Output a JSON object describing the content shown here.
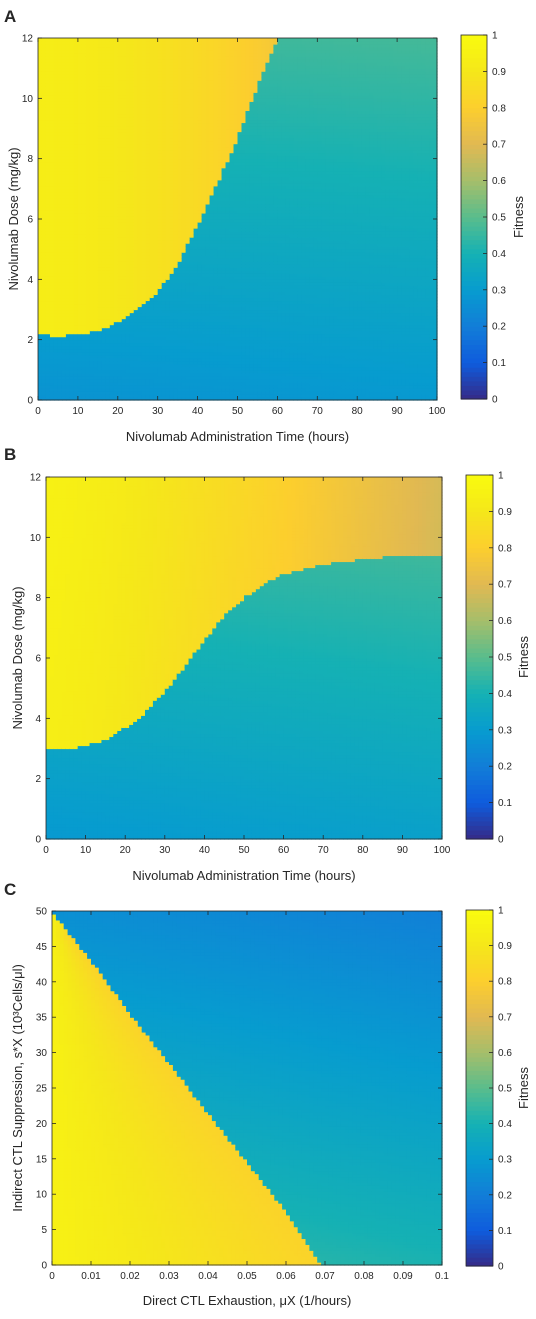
{
  "colors": {
    "yellow": "#f9e02a",
    "orange": "#f8bb3a",
    "teal": "#35b7b3",
    "blue": "#1a74e0",
    "navy": "#3b3594",
    "axis": "#262626"
  },
  "chart_data": [
    {
      "type": "heatmap",
      "panel_label": "A",
      "xlabel": "Nivolumab Administration Time (hours)",
      "ylabel": "Nivolumab Dose (mg/kg)",
      "colorbar_label": "Fitness",
      "xlim": [
        0,
        100
      ],
      "ylim": [
        0,
        12
      ],
      "xticks": [
        "0",
        "10",
        "20",
        "30",
        "40",
        "50",
        "60",
        "70",
        "80",
        "90",
        "100"
      ],
      "yticks": [
        "0",
        "2",
        "4",
        "6",
        "8",
        "10",
        "12"
      ],
      "colorbar_range": [
        0,
        1
      ],
      "colorbar_ticks": [
        "0",
        "0.1",
        "0.2",
        "0.3",
        "0.4",
        "0.5",
        "0.6",
        "0.7",
        "0.8",
        "0.9",
        "1"
      ],
      "colormap": "parula",
      "boundary": {
        "x": [
          0,
          5,
          10,
          15,
          20,
          25,
          30,
          35,
          40,
          45,
          50,
          55,
          60
        ],
        "y": [
          2.2,
          2.1,
          2.2,
          2.3,
          2.6,
          3.0,
          3.6,
          4.5,
          5.8,
          7.2,
          8.7,
          10.4,
          12
        ]
      },
      "high_region_fitness": {
        "at_x0": 0.93,
        "at_boundary_end": 0.8
      },
      "low_region_fitness": {
        "at_dose_0": 0.28,
        "at_dose_max": 0.45
      }
    },
    {
      "type": "heatmap",
      "panel_label": "B",
      "xlabel": "Nivolumab Administration Time (hours)",
      "ylabel": "Nivolumab Dose (mg/kg)",
      "colorbar_label": "Fitness",
      "xlim": [
        0,
        100
      ],
      "ylim": [
        0,
        12
      ],
      "xticks": [
        "0",
        "10",
        "20",
        "30",
        "40",
        "50",
        "60",
        "70",
        "80",
        "90",
        "100"
      ],
      "yticks": [
        "0",
        "2",
        "4",
        "6",
        "8",
        "10",
        "12"
      ],
      "colorbar_range": [
        0,
        1
      ],
      "colorbar_ticks": [
        "0",
        "0.1",
        "0.2",
        "0.3",
        "0.4",
        "0.5",
        "0.6",
        "0.7",
        "0.8",
        "0.9",
        "1"
      ],
      "colormap": "parula",
      "boundary": {
        "x": [
          0,
          5,
          10,
          15,
          20,
          25,
          30,
          35,
          40,
          45,
          50,
          55,
          60,
          70,
          80,
          90,
          100
        ],
        "y": [
          3.0,
          3.0,
          3.1,
          3.3,
          3.7,
          4.2,
          4.9,
          5.7,
          6.6,
          7.4,
          8.0,
          8.5,
          8.8,
          9.1,
          9.3,
          9.4,
          9.4
        ]
      },
      "high_region_fitness": {
        "at_x0": 0.93,
        "at_x100": 0.68
      },
      "low_region_fitness": {
        "at_dose_0": 0.3,
        "at_dose_max": 0.48
      }
    },
    {
      "type": "heatmap",
      "panel_label": "C",
      "xlabel": "Direct CTL Exhaustion, μX (1/hours)",
      "ylabel": "Indirect CTL Suppression, s*X (10³Cells/μl)",
      "colorbar_label": "Fitness",
      "xlim": [
        0,
        0.1
      ],
      "ylim": [
        0,
        50
      ],
      "xticks": [
        "0",
        "0.01",
        "0.02",
        "0.03",
        "0.04",
        "0.05",
        "0.06",
        "0.07",
        "0.08",
        "0.09",
        "0.1"
      ],
      "yticks": [
        "0",
        "5",
        "10",
        "15",
        "20",
        "25",
        "30",
        "35",
        "40",
        "45",
        "50"
      ],
      "colorbar_range": [
        0,
        1
      ],
      "colorbar_ticks": [
        "0",
        "0.1",
        "0.2",
        "0.3",
        "0.4",
        "0.5",
        "0.6",
        "0.7",
        "0.8",
        "0.9",
        "1"
      ],
      "colormap": "parula",
      "boundary": {
        "x": [
          0,
          0.01,
          0.02,
          0.03,
          0.04,
          0.05,
          0.06,
          0.069
        ],
        "y": [
          50,
          43,
          35.5,
          28.5,
          21.5,
          14.5,
          7.5,
          0
        ]
      },
      "high_region_fitness": {
        "at_x0": 0.95,
        "at_boundary": 0.82
      },
      "low_region_fitness": {
        "near_boundary": 0.45,
        "at_top_right": 0.25
      }
    }
  ]
}
